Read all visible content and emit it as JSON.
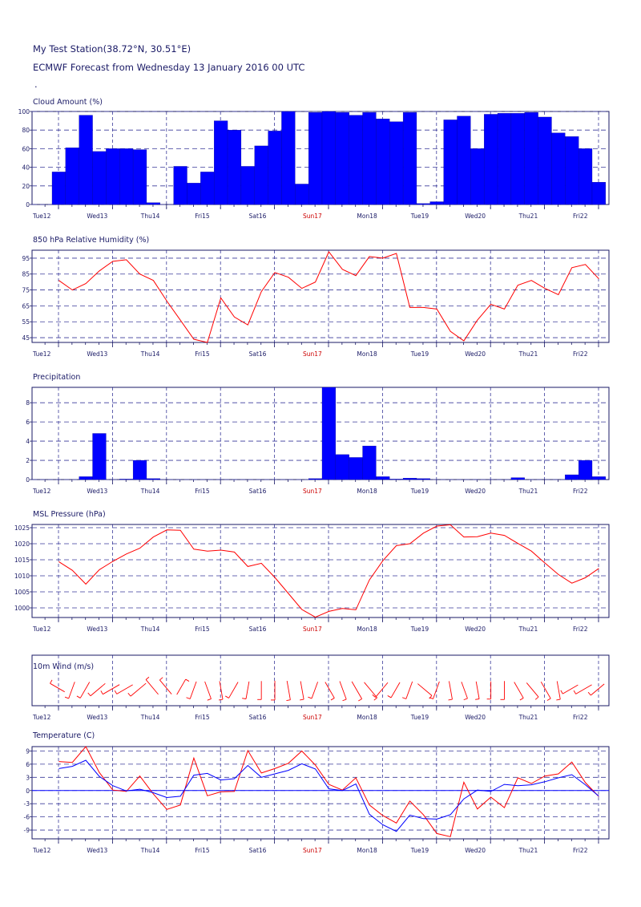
{
  "header": {
    "station": "My  Test  Station(38.72°N, 30.51°E)",
    "forecast": "ECMWF Forecast from Wednesday 13 January 2016 00 UTC",
    "dot": "."
  },
  "x_axis": {
    "labels": [
      "Tue12",
      "Wed13",
      "Thu14",
      "Fri15",
      "Sat16",
      "Sun17",
      "Mon18",
      "Tue19",
      "Wed20",
      "Thu21",
      "Fri22"
    ],
    "highlight_label": "Sun17",
    "highlight_color": "#cc0000"
  },
  "colors": {
    "frame": "#1a1a66",
    "grid": "#3a3a9a",
    "bar": "#0000ff",
    "red": "#ff0000",
    "blue": "#0000ff"
  },
  "chart_data": [
    {
      "id": "cloud",
      "type": "bar",
      "title": "Cloud Amount (%)",
      "ylim": [
        0,
        100
      ],
      "yticks": [
        0,
        20,
        40,
        60,
        80,
        100
      ],
      "values": [
        35,
        61,
        96,
        57,
        60,
        60,
        59,
        2,
        0,
        41,
        23,
        35,
        90,
        80,
        41,
        63,
        79,
        100,
        22,
        99,
        100,
        99,
        96,
        99,
        92,
        89,
        99,
        1,
        3,
        91,
        95,
        60,
        97,
        98,
        98,
        99,
        94,
        77,
        73,
        60,
        24
      ]
    },
    {
      "id": "rh",
      "type": "line",
      "title": "850 hPa Relative Humidity  (%)",
      "ylim": [
        42,
        100
      ],
      "yticks": [
        45,
        55,
        65,
        75,
        85,
        95
      ],
      "series": [
        {
          "color": "#ff0000",
          "values": [
            81,
            75,
            79,
            87,
            93,
            94,
            85,
            81,
            68,
            56,
            44,
            42,
            70,
            58,
            53,
            74,
            86,
            83,
            76,
            80,
            99,
            88,
            84,
            96,
            95,
            98,
            64,
            64,
            63,
            49,
            43,
            56,
            66,
            63,
            78,
            81,
            76,
            72,
            89,
            91,
            82
          ]
        }
      ]
    },
    {
      "id": "precip",
      "type": "bar",
      "title": "Precipitation",
      "ylim": [
        0,
        9.6
      ],
      "yticks": [
        0,
        2,
        4,
        6,
        8
      ],
      "values": [
        0,
        0,
        0.3,
        4.8,
        0,
        0.05,
        2,
        0.1,
        0,
        0,
        0,
        0,
        0,
        0,
        0,
        0,
        0,
        0,
        0,
        0.1,
        9.6,
        2.6,
        2.3,
        3.5,
        0.3,
        0.05,
        0.15,
        0.1,
        0,
        0,
        0,
        0,
        0,
        0,
        0.2,
        0,
        0,
        0,
        0.5,
        2,
        0.3
      ]
    },
    {
      "id": "mslp",
      "type": "line",
      "title": "MSL Pressure (hPa)",
      "ylim": [
        997,
        1026
      ],
      "yticks": [
        1000,
        1005,
        1010,
        1015,
        1020,
        1025
      ],
      "series": [
        {
          "color": "#ff0000",
          "values": [
            1014.4,
            1011.7,
            1007.4,
            1011.9,
            1014.5,
            1016.8,
            1018.6,
            1022.1,
            1024.3,
            1024.2,
            1018.3,
            1017.7,
            1018.0,
            1017.4,
            1012.9,
            1013.9,
            1009.5,
            1004.5,
            999.5,
            997.1,
            998.9,
            999.8,
            999.4,
            1008.7,
            1014.7,
            1019.4,
            1020.0,
            1023.3,
            1025.5,
            1025.9,
            1022.1,
            1022.2,
            1023.3,
            1022.6,
            1020.1,
            1017.7,
            1014.0,
            1010.4,
            1007.7,
            1009.4,
            1012.3
          ]
        }
      ]
    },
    {
      "id": "wind",
      "type": "scatter",
      "title": "10m Wind (m/s)",
      "direction_deg": [
        300,
        200,
        210,
        230,
        240,
        240,
        230,
        320,
        320,
        30,
        200,
        160,
        170,
        210,
        190,
        180,
        180,
        170,
        170,
        200,
        150,
        160,
        150,
        140,
        220,
        210,
        200,
        130,
        200,
        170,
        160,
        170,
        180,
        180,
        150,
        140,
        150,
        170,
        240,
        240,
        230
      ],
      "speed_ms": [
        3,
        4,
        5,
        6,
        6,
        5,
        7,
        6,
        5,
        4,
        5,
        5,
        5,
        5,
        4,
        5,
        6,
        6,
        5,
        4,
        5,
        6,
        7,
        7,
        6,
        4,
        5,
        5,
        5,
        5,
        4,
        4,
        4,
        5,
        5,
        5,
        6,
        5,
        4,
        5,
        4
      ]
    },
    {
      "id": "temp",
      "type": "line",
      "title": "Temperature (C)",
      "ylim": [
        -11,
        10
      ],
      "yticks": [
        -9,
        -6,
        -3,
        0,
        3,
        6,
        9
      ],
      "series": [
        {
          "color": "#ff0000",
          "values": [
            6.6,
            6.4,
            10.0,
            4.1,
            0.1,
            -0.2,
            3.3,
            -0.8,
            -4.3,
            -3.3,
            7.4,
            -1.2,
            -0.3,
            -0.2,
            9.1,
            4.0,
            5.0,
            6.2,
            9.0,
            5.8,
            1.4,
            0.1,
            2.9,
            -3.3,
            -5.7,
            -7.4,
            -2.4,
            -5.5,
            -9.8,
            -10.5,
            1.9,
            -4.2,
            -1.5,
            -3.9,
            2.9,
            1.6,
            3.3,
            3.8,
            6.5,
            1.8,
            -1.4
          ]
        },
        {
          "color": "#0000ff",
          "values": [
            5.0,
            5.5,
            6.9,
            3.2,
            1.1,
            -0.1,
            0.3,
            -0.5,
            -1.6,
            -1.3,
            3.5,
            3.9,
            2.4,
            2.7,
            5.7,
            3.0,
            3.8,
            4.6,
            6.1,
            4.9,
            0.4,
            0.0,
            1.5,
            -5.4,
            -7.8,
            -9.3,
            -5.6,
            -6.4,
            -6.5,
            -5.5,
            -1.9,
            0.1,
            -0.2,
            1.4,
            1.1,
            1.3,
            2.0,
            2.9,
            3.6,
            1.3,
            -1.3
          ]
        }
      ]
    }
  ]
}
